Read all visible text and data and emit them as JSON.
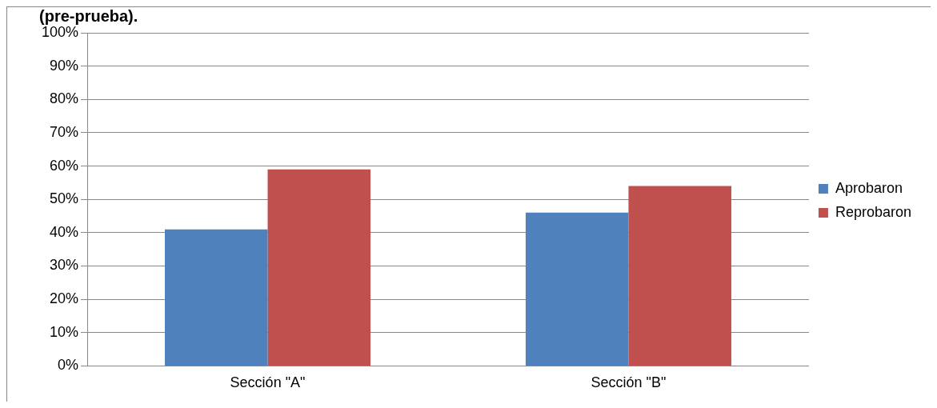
{
  "chart_data": {
    "type": "bar",
    "title": "(pre-prueba).",
    "categories": [
      "Sección \"A\"",
      "Sección \"B\""
    ],
    "series": [
      {
        "name": "Aprobaron",
        "color": "#4f81bd",
        "values": [
          41,
          46
        ]
      },
      {
        "name": "Reprobaron",
        "color": "#c0504d",
        "values": [
          59,
          54
        ]
      }
    ],
    "ylim": [
      0,
      100
    ],
    "yticks": [
      {
        "value": 0,
        "label": "0%"
      },
      {
        "value": 10,
        "label": "10%"
      },
      {
        "value": 20,
        "label": "20%"
      },
      {
        "value": 30,
        "label": "30%"
      },
      {
        "value": 40,
        "label": "40%"
      },
      {
        "value": 50,
        "label": "50%"
      },
      {
        "value": 60,
        "label": "60%"
      },
      {
        "value": 70,
        "label": "70%"
      },
      {
        "value": 80,
        "label": "80%"
      },
      {
        "value": 90,
        "label": "90%"
      },
      {
        "value": 100,
        "label": "100%"
      }
    ],
    "grid": "y",
    "legend": "right"
  }
}
